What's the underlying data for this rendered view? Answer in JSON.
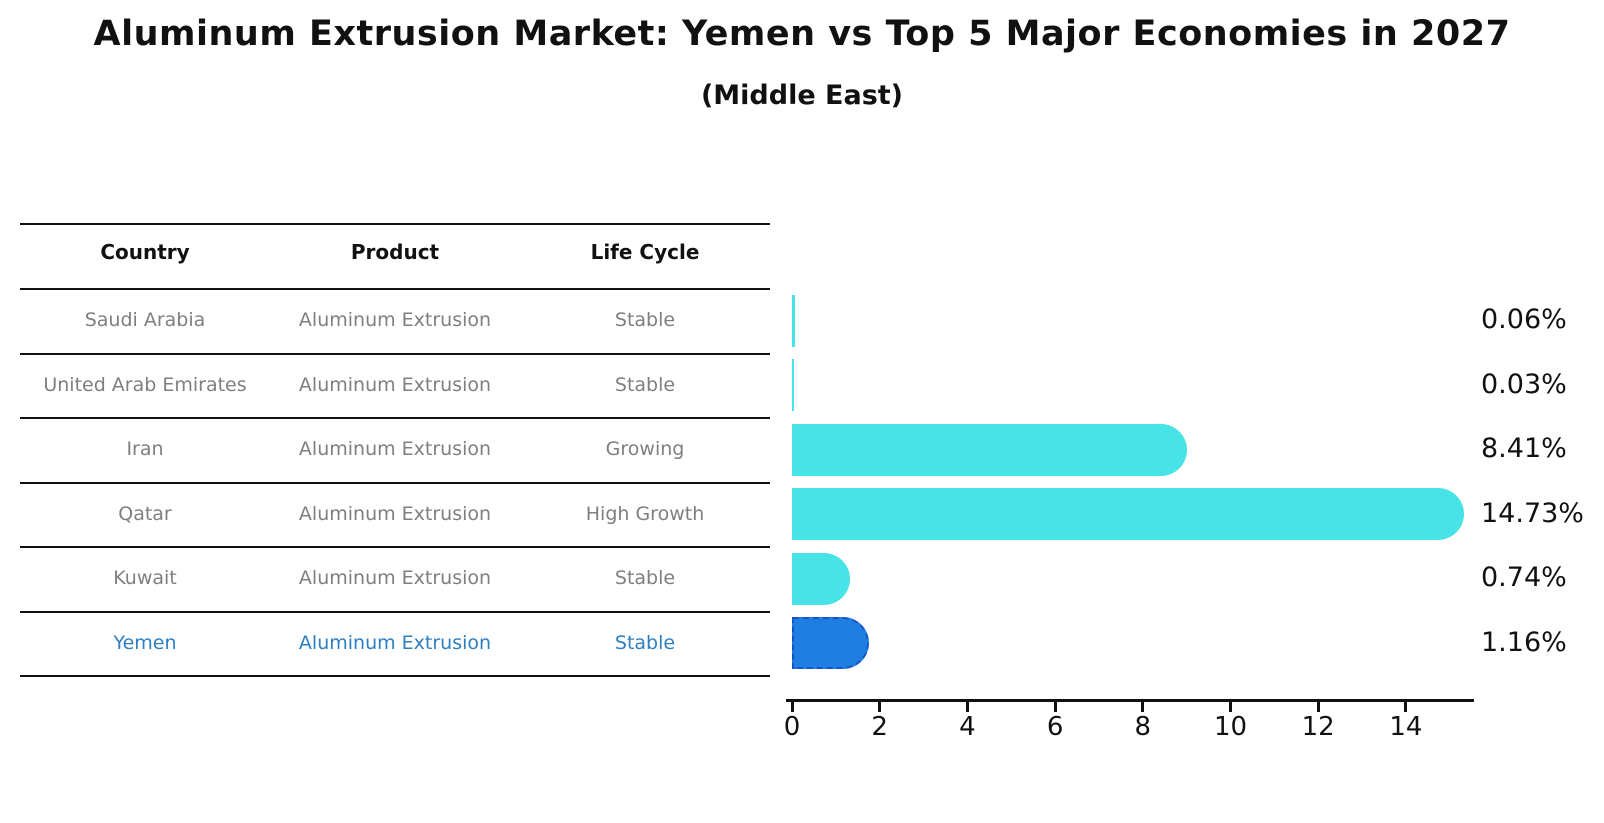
{
  "title": "Aluminum Extrusion Market: Yemen vs Top 5 Major Economies in 2027",
  "subtitle": "(Middle East)",
  "table": {
    "headers": [
      "Country",
      "Product",
      "Life Cycle"
    ],
    "rows": [
      {
        "country": "Saudi Arabia",
        "product": "Aluminum Extrusion",
        "life_cycle": "Stable",
        "highlighted": false
      },
      {
        "country": "United Arab Emirates",
        "product": "Aluminum Extrusion",
        "life_cycle": "Stable",
        "highlighted": false
      },
      {
        "country": "Iran",
        "product": "Aluminum Extrusion",
        "life_cycle": "Growing",
        "highlighted": false
      },
      {
        "country": "Qatar",
        "product": "Aluminum Extrusion",
        "life_cycle": "High Growth",
        "highlighted": false
      },
      {
        "country": "Kuwait",
        "product": "Aluminum Extrusion",
        "life_cycle": "Stable",
        "highlighted": false
      },
      {
        "country": "Yemen",
        "product": "Aluminum Extrusion",
        "life_cycle": "Stable",
        "highlighted": true
      }
    ]
  },
  "chart_data": {
    "type": "bar",
    "orientation": "horizontal",
    "title": "Aluminum Extrusion Market: Yemen vs Top 5 Major Economies in 2027",
    "subtitle": "(Middle East)",
    "categories": [
      "Saudi Arabia",
      "United Arab Emirates",
      "Iran",
      "Qatar",
      "Kuwait",
      "Yemen"
    ],
    "values": [
      0.06,
      0.03,
      8.41,
      14.73,
      0.74,
      1.16
    ],
    "value_labels": [
      "0.06%",
      "0.03%",
      "8.41%",
      "14.73%",
      "0.74%",
      "1.16%"
    ],
    "x_ticks": [
      0,
      2,
      4,
      6,
      8,
      10,
      12,
      14
    ],
    "xlim": [
      0,
      15.5
    ],
    "xlabel": "",
    "ylabel": "",
    "grid": false,
    "legend": false,
    "highlight_index": 5,
    "colors": {
      "bar": "#48E3E6",
      "highlight_bar": "#1E7FE0",
      "highlight_bar_border": "#1553C8",
      "row_text": "#7F7F7F",
      "highlight_text": "#2E7FC2",
      "axis": "#111111"
    }
  }
}
